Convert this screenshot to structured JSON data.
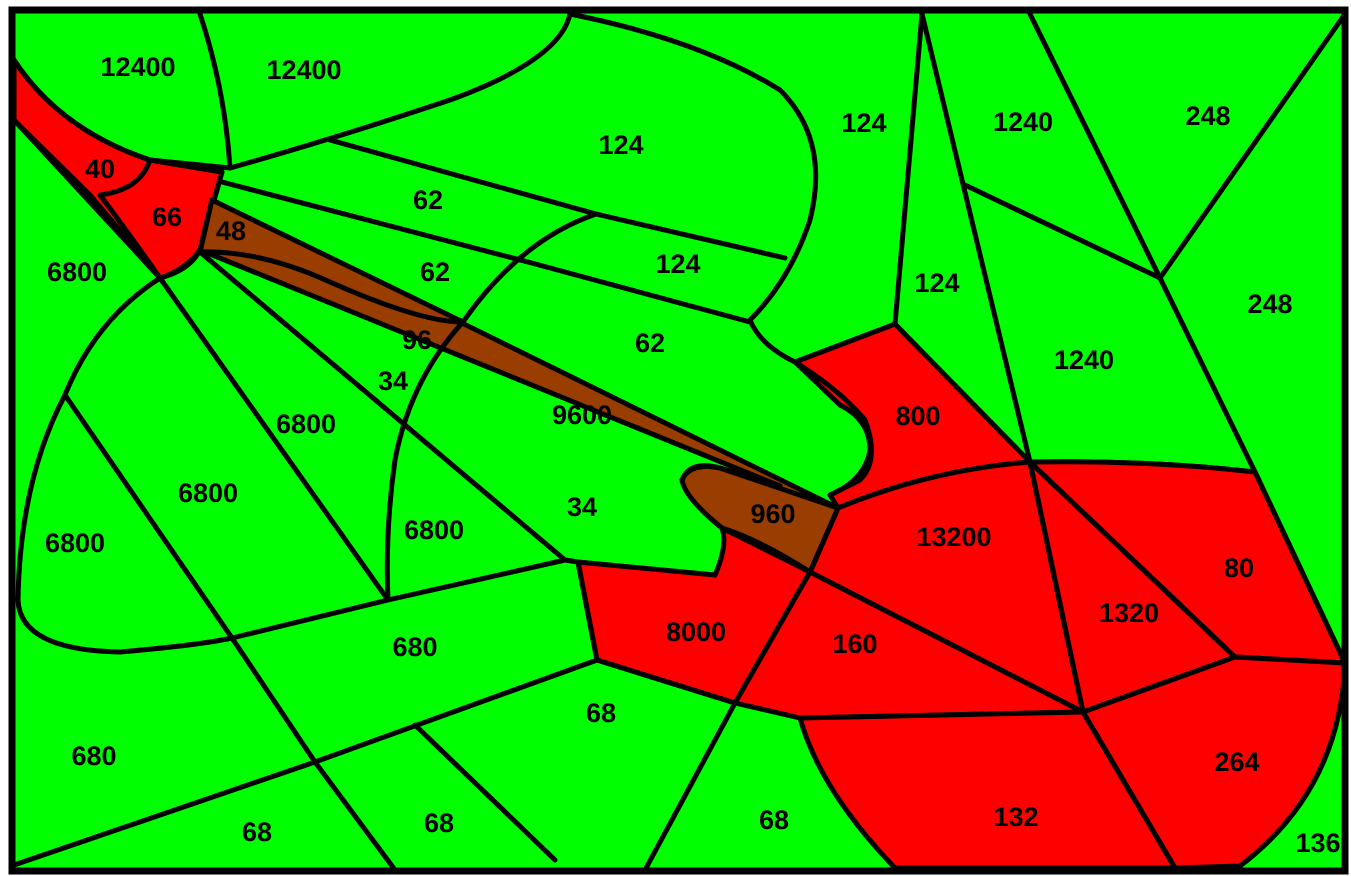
{
  "colors": {
    "green": "#00ff00",
    "red": "#ff0000",
    "brown": "#9a3d00",
    "stroke": "#000000"
  },
  "regions": [
    {
      "id": "r1",
      "label": "12400",
      "color": "green"
    },
    {
      "id": "r2",
      "label": "12400",
      "color": "green"
    },
    {
      "id": "r3",
      "label": "40",
      "color": "red"
    },
    {
      "id": "r4",
      "label": "66",
      "color": "red"
    },
    {
      "id": "r5",
      "label": "48",
      "color": "brown"
    },
    {
      "id": "r6",
      "label": "6800",
      "color": "green"
    },
    {
      "id": "r7",
      "label": "124",
      "color": "green"
    },
    {
      "id": "r8",
      "label": "62",
      "color": "green"
    },
    {
      "id": "r9",
      "label": "124",
      "color": "green"
    },
    {
      "id": "r10",
      "label": "1240",
      "color": "green"
    },
    {
      "id": "r11",
      "label": "248",
      "color": "green"
    },
    {
      "id": "r12",
      "label": "62",
      "color": "green"
    },
    {
      "id": "r13",
      "label": "124",
      "color": "green"
    },
    {
      "id": "r14",
      "label": "124",
      "color": "green"
    },
    {
      "id": "r15",
      "label": "248",
      "color": "green"
    },
    {
      "id": "r16",
      "label": "96",
      "color": "brown"
    },
    {
      "id": "r17",
      "label": "62",
      "color": "green"
    },
    {
      "id": "r18",
      "label": "1240",
      "color": "green"
    },
    {
      "id": "r19",
      "label": "34",
      "color": "green"
    },
    {
      "id": "r20",
      "label": "9600",
      "color": "brown"
    },
    {
      "id": "r21",
      "label": "800",
      "color": "red"
    },
    {
      "id": "r22",
      "label": "6800",
      "color": "green"
    },
    {
      "id": "r23",
      "label": "6800",
      "color": "green"
    },
    {
      "id": "r24",
      "label": "34",
      "color": "green"
    },
    {
      "id": "r25",
      "label": "960",
      "color": "brown"
    },
    {
      "id": "r26",
      "label": "13200",
      "color": "red"
    },
    {
      "id": "r27",
      "label": "6800",
      "color": "green"
    },
    {
      "id": "r28",
      "label": "6800",
      "color": "green"
    },
    {
      "id": "r29",
      "label": "80",
      "color": "red"
    },
    {
      "id": "r30",
      "label": "1320",
      "color": "red"
    },
    {
      "id": "r31",
      "label": "8000",
      "color": "red"
    },
    {
      "id": "r32",
      "label": "680",
      "color": "green"
    },
    {
      "id": "r33",
      "label": "160",
      "color": "red"
    },
    {
      "id": "r34",
      "label": "68",
      "color": "green"
    },
    {
      "id": "r35",
      "label": "680",
      "color": "green"
    },
    {
      "id": "r36",
      "label": "264",
      "color": "red"
    },
    {
      "id": "r37",
      "label": "68",
      "color": "green"
    },
    {
      "id": "r38",
      "label": "68",
      "color": "green"
    },
    {
      "id": "r39",
      "label": "68",
      "color": "green"
    },
    {
      "id": "r40",
      "label": "132",
      "color": "red"
    },
    {
      "id": "r41",
      "label": "136",
      "color": "green"
    }
  ]
}
